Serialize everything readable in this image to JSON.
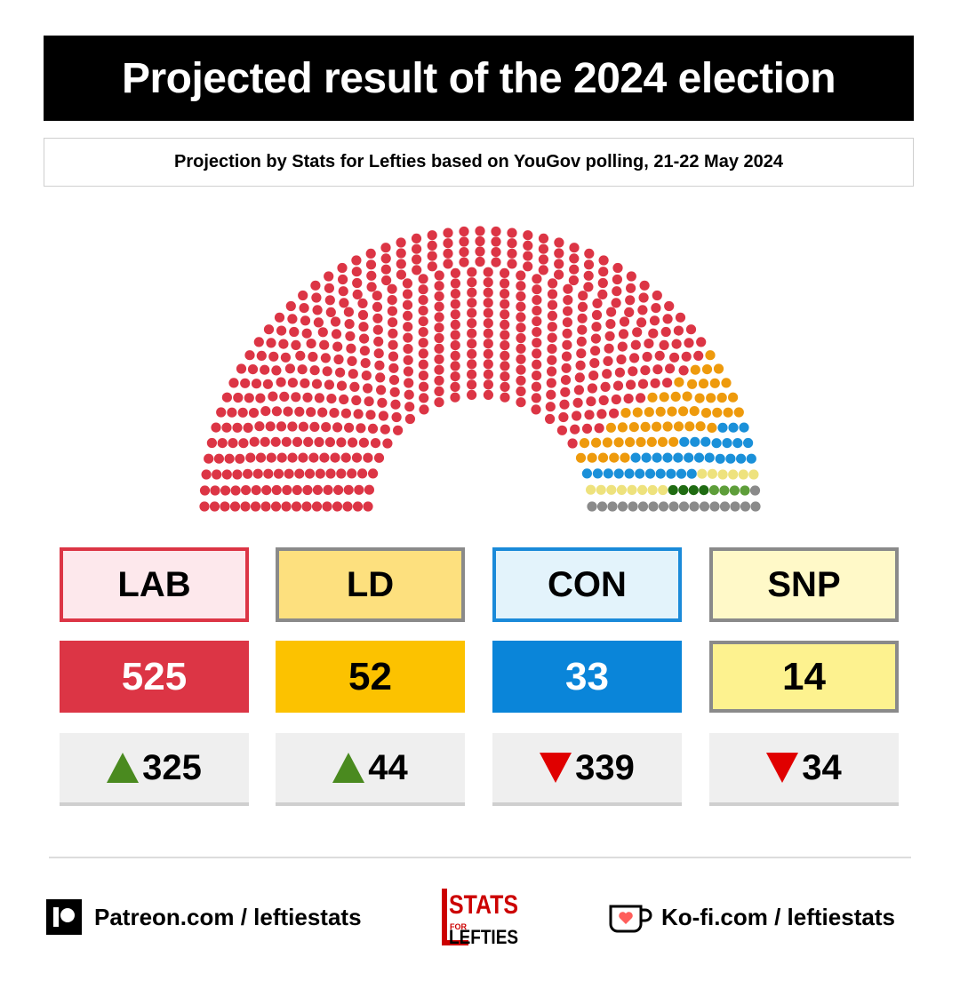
{
  "header": {
    "title": "Projected result of the 2024 election",
    "subtitle": "Projection by Stats for Lefties based on YouGov polling, 21-22 May 2024"
  },
  "colors": {
    "lab": "#dc3545",
    "ld": "#ee9a0c",
    "con": "#1a90d9",
    "snp": "#eee27d",
    "green": "#1f6b12",
    "plaid": "#5e9e3a",
    "other": "#8a8a8a"
  },
  "chart_data": {
    "type": "hemicycle",
    "total_seats": 650,
    "series": [
      {
        "name": "LAB",
        "seats": 525,
        "change": 325,
        "direction": "up",
        "color": "#dc3545"
      },
      {
        "name": "LD",
        "seats": 52,
        "change": 44,
        "direction": "up",
        "color": "#ee9a0c"
      },
      {
        "name": "CON",
        "seats": 33,
        "change": 339,
        "direction": "down",
        "color": "#1a90d9"
      },
      {
        "name": "SNP",
        "seats": 14,
        "change": 34,
        "direction": "down",
        "color": "#eee27d"
      }
    ],
    "other_seats": [
      {
        "seats": 4,
        "color": "#1f6b12"
      },
      {
        "seats": 4,
        "color": "#5e9e3a"
      },
      {
        "seats": 18,
        "color": "#8a8a8a"
      }
    ]
  },
  "cards": [
    {
      "label": "LAB",
      "seats": "525",
      "change": "325",
      "direction": "up",
      "label_bg": "#fde8ec",
      "label_border": "#dc3545",
      "seat_bg": "#dc3545",
      "seat_border": "#dc3545",
      "seat_color": "#ffffff"
    },
    {
      "label": "LD",
      "seats": "52",
      "change": "44",
      "direction": "up",
      "label_bg": "#fde07e",
      "label_border": "#8a8a8a",
      "seat_bg": "#fcc200",
      "seat_border": "#fcc200",
      "seat_color": "#000000"
    },
    {
      "label": "CON",
      "seats": "33",
      "change": "339",
      "direction": "down",
      "label_bg": "#e3f3fb",
      "label_border": "#1a8ad9",
      "seat_bg": "#0a85d9",
      "seat_border": "#0a85d9",
      "seat_color": "#ffffff"
    },
    {
      "label": "SNP",
      "seats": "14",
      "change": "34",
      "direction": "down",
      "label_bg": "#fff9c8",
      "label_border": "#8a8a8a",
      "seat_bg": "#fdf28f",
      "seat_border": "#8a8a8a",
      "seat_color": "#000000"
    }
  ],
  "footer": {
    "patreon": "Patreon.com / leftiestats",
    "kofi": "Ko-fi.com / leftiestats",
    "logo_top": "STATS",
    "logo_for": "FOR",
    "logo_bottom": "LEFTIES"
  }
}
